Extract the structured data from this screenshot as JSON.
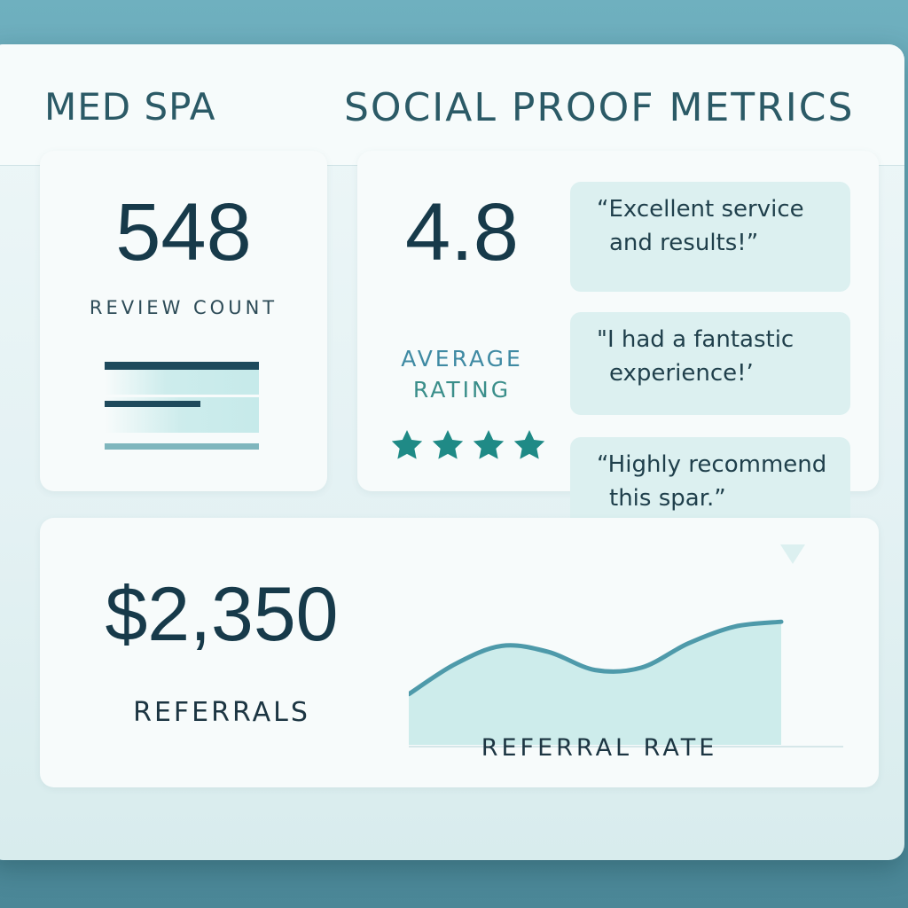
{
  "header": {
    "app_name": "MED SPA",
    "page_title": "SOCIAL PROOF METRICS"
  },
  "review_count": {
    "value": "548",
    "label": "REVIEW COUNT"
  },
  "average_rating": {
    "value": "4.8",
    "label_line1": "AVERAGE",
    "label_line2": "RATING",
    "stars_shown": 4,
    "star_color": "#1f8a86"
  },
  "testimonials": [
    {
      "line1": "“Excellent service",
      "line2": "and results!”"
    },
    {
      "line1": "\"I had a fantastic",
      "line2": "experience!’"
    },
    {
      "line1": "“Highly recommend",
      "line2": "this spar.”"
    }
  ],
  "referrals": {
    "value": "$2,350",
    "label": "REFERRALS"
  },
  "chart_data": {
    "type": "area",
    "title": "REFERRAL RATE",
    "xlabel": "",
    "ylabel": "",
    "x": [
      0,
      1,
      2,
      3,
      4,
      5,
      6,
      7,
      8
    ],
    "values": [
      0.2,
      0.45,
      0.6,
      0.55,
      0.4,
      0.42,
      0.62,
      0.76,
      0.8
    ],
    "ylim": [
      0,
      1
    ],
    "grid": false,
    "line_color": "#4e9aaa",
    "fill_color": "#cdeceb"
  },
  "colors": {
    "accent": "#2b5a66",
    "number": "#173a4a",
    "rating_label": "#3f8aa3"
  }
}
